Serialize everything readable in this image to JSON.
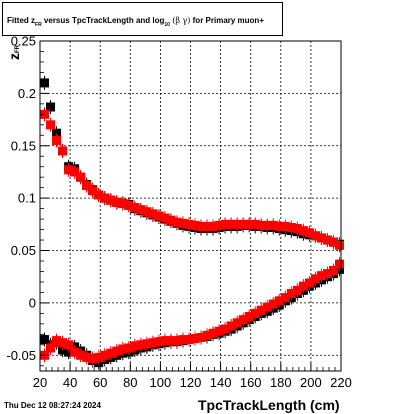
{
  "title": {
    "prefix": "Fitted",
    "zvar": "z",
    "zsub": "FR",
    "mid": "versus TpcTrackLength and log",
    "logsub": "10",
    "greek": "(β  γ)",
    "suffix": "for Primary muon+"
  },
  "footer": "Thu Dec 12 08:27:24 2024",
  "chart_data": {
    "type": "scatter",
    "title": "Fitted zFR versus TpcTrackLength and log10 (β γ) for Primary muon+",
    "xlabel": "TpcTrackLength (cm)",
    "ylabel": "z FR",
    "xlim": [
      20,
      220
    ],
    "ylim": [
      -0.065,
      0.25
    ],
    "grid": true,
    "x_ticks": [
      "20",
      "40",
      "60",
      "80",
      "100",
      "120",
      "140",
      "160",
      "180",
      "200",
      "220"
    ],
    "y_ticks": [
      "-0.05",
      "0",
      "0.05",
      "0.1",
      "0.15",
      "0.2",
      "0.25"
    ],
    "series": [
      {
        "marker": "square",
        "color": "#000000",
        "upper": {
          "x": [
            23,
            27,
            31,
            35,
            39,
            43,
            47,
            51,
            55,
            59,
            63,
            67,
            71,
            75,
            79,
            83,
            87,
            91,
            95,
            99,
            103,
            107,
            111,
            115,
            119,
            123,
            127,
            131,
            135,
            139,
            143,
            147,
            151,
            155,
            159,
            163,
            167,
            171,
            175,
            179,
            183,
            187,
            191,
            195,
            199,
            203,
            207,
            211,
            215,
            219
          ],
          "y": [
            0.21,
            0.187,
            0.162,
            0.145,
            0.13,
            0.128,
            0.12,
            0.113,
            0.108,
            0.103,
            0.1,
            0.098,
            0.096,
            0.095,
            0.094,
            0.09,
            0.088,
            0.086,
            0.084,
            0.082,
            0.08,
            0.078,
            0.076,
            0.074,
            0.073,
            0.072,
            0.071,
            0.071,
            0.071,
            0.072,
            0.073,
            0.073,
            0.073,
            0.074,
            0.074,
            0.073,
            0.073,
            0.072,
            0.072,
            0.071,
            0.07,
            0.069,
            0.068,
            0.066,
            0.065,
            0.064,
            0.062,
            0.06,
            0.058,
            0.056
          ]
        },
        "lower": {
          "x": [
            23,
            27,
            31,
            35,
            39,
            43,
            47,
            51,
            55,
            59,
            63,
            67,
            71,
            75,
            79,
            83,
            87,
            91,
            95,
            99,
            103,
            107,
            111,
            115,
            119,
            123,
            127,
            131,
            135,
            139,
            143,
            147,
            151,
            155,
            159,
            163,
            167,
            171,
            175,
            179,
            183,
            187,
            191,
            195,
            199,
            203,
            207,
            211,
            215,
            219
          ],
          "y": [
            -0.035,
            -0.04,
            -0.038,
            -0.045,
            -0.047,
            -0.042,
            -0.046,
            -0.05,
            -0.055,
            -0.057,
            -0.054,
            -0.052,
            -0.05,
            -0.048,
            -0.047,
            -0.045,
            -0.043,
            -0.042,
            -0.04,
            -0.039,
            -0.038,
            -0.037,
            -0.037,
            -0.036,
            -0.035,
            -0.034,
            -0.033,
            -0.032,
            -0.03,
            -0.029,
            -0.027,
            -0.025,
            -0.022,
            -0.019,
            -0.016,
            -0.013,
            -0.01,
            -0.008,
            -0.005,
            -0.002,
            0.002,
            0.005,
            0.009,
            0.012,
            0.016,
            0.019,
            0.022,
            0.025,
            0.028,
            0.032
          ]
        }
      },
      {
        "marker": "square",
        "color": "#ff0000",
        "upper": {
          "x": [
            23,
            27,
            31,
            35,
            39,
            43,
            47,
            51,
            55,
            59,
            63,
            67,
            71,
            75,
            79,
            83,
            87,
            91,
            95,
            99,
            103,
            107,
            111,
            115,
            119,
            123,
            127,
            131,
            135,
            139,
            143,
            147,
            151,
            155,
            159,
            163,
            167,
            171,
            175,
            179,
            183,
            187,
            191,
            195,
            199,
            203,
            207,
            211,
            215,
            219
          ],
          "y": [
            0.18,
            0.17,
            0.155,
            0.145,
            0.127,
            0.125,
            0.12,
            0.112,
            0.107,
            0.103,
            0.1,
            0.098,
            0.096,
            0.095,
            0.093,
            0.091,
            0.089,
            0.087,
            0.085,
            0.083,
            0.081,
            0.079,
            0.077,
            0.076,
            0.075,
            0.074,
            0.073,
            0.073,
            0.073,
            0.074,
            0.075,
            0.075,
            0.075,
            0.075,
            0.075,
            0.075,
            0.074,
            0.074,
            0.074,
            0.073,
            0.073,
            0.072,
            0.071,
            0.069,
            0.067,
            0.064,
            0.062,
            0.06,
            0.058,
            0.055
          ]
        },
        "lower": {
          "x": [
            23,
            27,
            31,
            35,
            39,
            43,
            47,
            51,
            55,
            59,
            63,
            67,
            71,
            75,
            79,
            83,
            87,
            91,
            95,
            99,
            103,
            107,
            111,
            115,
            119,
            123,
            127,
            131,
            135,
            139,
            143,
            147,
            151,
            155,
            159,
            163,
            167,
            171,
            175,
            179,
            183,
            187,
            191,
            195,
            199,
            203,
            207,
            211,
            215,
            219
          ],
          "y": [
            -0.05,
            -0.043,
            -0.036,
            -0.038,
            -0.04,
            -0.047,
            -0.05,
            -0.052,
            -0.053,
            -0.052,
            -0.05,
            -0.048,
            -0.046,
            -0.044,
            -0.043,
            -0.041,
            -0.04,
            -0.039,
            -0.038,
            -0.037,
            -0.036,
            -0.036,
            -0.036,
            -0.035,
            -0.035,
            -0.034,
            -0.033,
            -0.031,
            -0.029,
            -0.027,
            -0.025,
            -0.022,
            -0.019,
            -0.016,
            -0.013,
            -0.01,
            -0.007,
            -0.004,
            -0.001,
            0.002,
            0.005,
            0.009,
            0.012,
            0.016,
            0.019,
            0.023,
            0.026,
            0.028,
            0.031,
            0.037
          ]
        }
      }
    ]
  }
}
